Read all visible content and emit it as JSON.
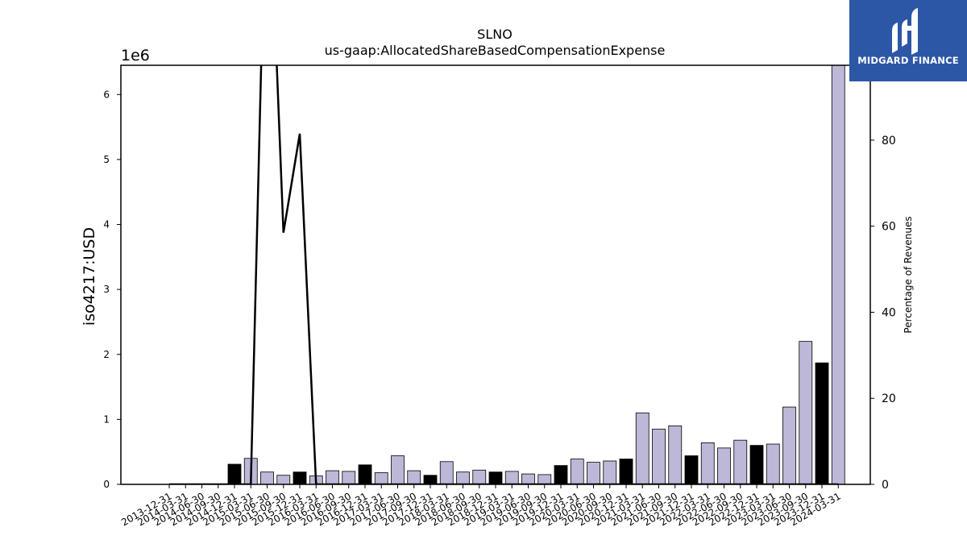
{
  "logo": {
    "text": "MIDGARD FINANCE",
    "icon": "midgard-logo-icon",
    "background": "#2c57a6"
  },
  "chart_data": {
    "type": "bar",
    "title": "SLNO",
    "subtitle": "us-gaap:AllocatedShareBasedCompensationExpense",
    "ylabel": "iso4217:USD",
    "y2label": "Percentage of Revenues",
    "offset_label": "1e6",
    "ylim": [
      0,
      6450000
    ],
    "y2lim": [
      0,
      97.4
    ],
    "yticks": [
      0,
      1,
      2,
      3,
      4,
      5,
      6
    ],
    "y2ticks": [
      0,
      20,
      40,
      60,
      80
    ],
    "grid": false,
    "colors": {
      "quarterly_bar": "#bcb8d8",
      "annual_bar": "#000000",
      "line": "#000000",
      "edge": "#000000"
    },
    "categories": [
      "2013-12-31",
      "2014-03-31",
      "2014-06-30",
      "2014-09-30",
      "2014-12-31",
      "2015-03-31",
      "2015-06-30",
      "2015-09-30",
      "2015-12-31",
      "2016-03-31",
      "2016-06-30",
      "2016-09-30",
      "2016-12-31",
      "2017-03-31",
      "2017-06-30",
      "2017-09-30",
      "2017-12-31",
      "2018-03-31",
      "2018-06-30",
      "2018-09-30",
      "2018-12-31",
      "2019-03-31",
      "2019-06-30",
      "2019-09-30",
      "2019-12-31",
      "2020-03-31",
      "2020-06-30",
      "2020-09-30",
      "2020-12-31",
      "2021-03-31",
      "2021-06-30",
      "2021-09-30",
      "2021-12-31",
      "2022-03-31",
      "2022-06-30",
      "2022-09-30",
      "2022-12-31",
      "2023-03-31",
      "2023-06-30",
      "2023-09-30",
      "2023-12-31",
      "2024-03-31"
    ],
    "series": [
      {
        "kind": "bar",
        "period": [
          "Q",
          "Q",
          "Q",
          "Q",
          "FY",
          "Q",
          "Q",
          "Q",
          "FY",
          "Q",
          "Q",
          "Q",
          "FY",
          "Q",
          "Q",
          "Q",
          "FY",
          "Q",
          "Q",
          "Q",
          "FY",
          "Q",
          "Q",
          "Q",
          "FY",
          "Q",
          "Q",
          "Q",
          "FY",
          "Q",
          "Q",
          "Q",
          "FY",
          "Q",
          "Q",
          "Q",
          "FY",
          "Q",
          "Q",
          "Q",
          "FY",
          "Q"
        ],
        "values": [
          0,
          0,
          0,
          0,
          310000,
          400000,
          190000,
          140000,
          190000,
          130000,
          210000,
          200000,
          300000,
          180000,
          440000,
          210000,
          140000,
          350000,
          190000,
          220000,
          190000,
          200000,
          160000,
          150000,
          290000,
          390000,
          340000,
          360000,
          390000,
          1100000,
          850000,
          900000,
          440000,
          640000,
          560000,
          680000,
          600000,
          620000,
          1190000,
          2200000,
          1870000,
          6450000
        ]
      },
      {
        "kind": "line",
        "axis": "right",
        "values": [
          0,
          0,
          0,
          0,
          0,
          0,
          null,
          58.5,
          81.5,
          0,
          0,
          0,
          0,
          0,
          0,
          0,
          0,
          0,
          0,
          0,
          0,
          0,
          0,
          0,
          0,
          0,
          0,
          0,
          0,
          0,
          0,
          0,
          0,
          0,
          0,
          0,
          0,
          0,
          0,
          0,
          0,
          0
        ]
      }
    ]
  }
}
